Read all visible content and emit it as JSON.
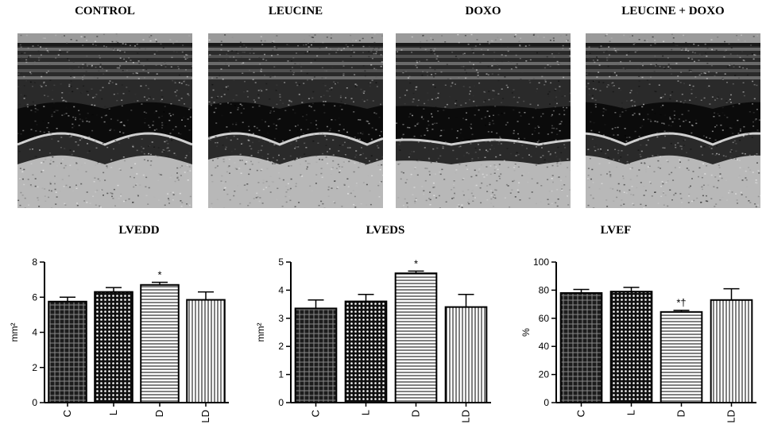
{
  "panels": [
    {
      "title": "CONTROL"
    },
    {
      "title": "LEUCINE"
    },
    {
      "title": "DOXO"
    },
    {
      "title": "LEUCINE + DOXO"
    }
  ],
  "chart_data": [
    {
      "type": "bar",
      "title": "LVEDD",
      "ylabel": "mm²",
      "categories": [
        "C",
        "L",
        "D",
        "LD"
      ],
      "values": [
        5.75,
        6.3,
        6.7,
        5.85
      ],
      "errors": [
        0.25,
        0.25,
        0.15,
        0.45
      ],
      "annotations": [
        "",
        "",
        "*",
        ""
      ],
      "ylim": [
        0,
        8
      ],
      "yticks": [
        0,
        2,
        4,
        6,
        8
      ],
      "ytick_labels": [
        "0",
        "2",
        "4",
        "6",
        "8"
      ],
      "patterns": [
        "grid",
        "dots",
        "hlines",
        "vlines"
      ]
    },
    {
      "type": "bar",
      "title": "LVEDS",
      "ylabel": "mm²",
      "categories": [
        "C",
        "L",
        "D",
        "LD"
      ],
      "values": [
        3.35,
        3.6,
        4.6,
        3.4
      ],
      "errors": [
        0.3,
        0.25,
        0.08,
        0.45
      ],
      "annotations": [
        "",
        "",
        "*",
        ""
      ],
      "ylim": [
        0,
        5
      ],
      "yticks": [
        0,
        1,
        2,
        3,
        4,
        5
      ],
      "ytick_labels": [
        "0",
        "1",
        "2",
        "3",
        "4",
        "5"
      ],
      "patterns": [
        "grid",
        "dots",
        "hlines",
        "vlines"
      ]
    },
    {
      "type": "bar",
      "title": "LVEF",
      "ylabel": "%",
      "categories": [
        "C",
        "L",
        "D",
        "LD"
      ],
      "values": [
        78,
        79,
        64.5,
        73
      ],
      "errors": [
        2.5,
        3,
        1.2,
        8
      ],
      "annotations": [
        "",
        "",
        "*†",
        ""
      ],
      "ylim": [
        0,
        100
      ],
      "yticks": [
        0,
        20,
        40,
        60,
        80,
        100
      ],
      "ytick_labels": [
        "0",
        "20",
        "40",
        "60",
        "80",
        "100"
      ],
      "patterns": [
        "grid",
        "dots",
        "hlines",
        "vlines"
      ]
    }
  ]
}
